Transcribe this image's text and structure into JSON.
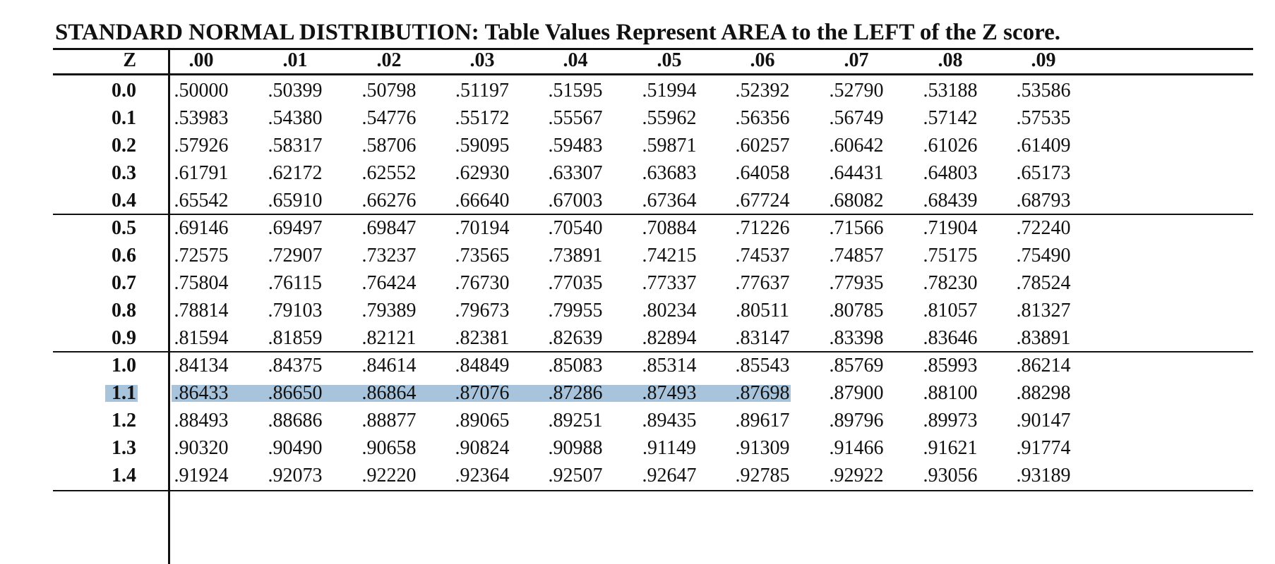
{
  "title": "STANDARD NORMAL DISTRIBUTION: Table Values Represent AREA to the LEFT of the Z score.",
  "table": {
    "z_header": "Z",
    "columns": [
      ".00",
      ".01",
      ".02",
      ".03",
      ".04",
      ".05",
      ".06",
      ".07",
      ".08",
      ".09"
    ],
    "rows": [
      {
        "z": "0.0",
        "values": [
          ".50000",
          ".50399",
          ".50798",
          ".51197",
          ".51595",
          ".51994",
          ".52392",
          ".52790",
          ".53188",
          ".53586"
        ]
      },
      {
        "z": "0.1",
        "values": [
          ".53983",
          ".54380",
          ".54776",
          ".55172",
          ".55567",
          ".55962",
          ".56356",
          ".56749",
          ".57142",
          ".57535"
        ]
      },
      {
        "z": "0.2",
        "values": [
          ".57926",
          ".58317",
          ".58706",
          ".59095",
          ".59483",
          ".59871",
          ".60257",
          ".60642",
          ".61026",
          ".61409"
        ]
      },
      {
        "z": "0.3",
        "values": [
          ".61791",
          ".62172",
          ".62552",
          ".62930",
          ".63307",
          ".63683",
          ".64058",
          ".64431",
          ".64803",
          ".65173"
        ]
      },
      {
        "z": "0.4",
        "values": [
          ".65542",
          ".65910",
          ".66276",
          ".66640",
          ".67003",
          ".67364",
          ".67724",
          ".68082",
          ".68439",
          ".68793"
        ]
      },
      {
        "z": "0.5",
        "values": [
          ".69146",
          ".69497",
          ".69847",
          ".70194",
          ".70540",
          ".70884",
          ".71226",
          ".71566",
          ".71904",
          ".72240"
        ]
      },
      {
        "z": "0.6",
        "values": [
          ".72575",
          ".72907",
          ".73237",
          ".73565",
          ".73891",
          ".74215",
          ".74537",
          ".74857",
          ".75175",
          ".75490"
        ]
      },
      {
        "z": "0.7",
        "values": [
          ".75804",
          ".76115",
          ".76424",
          ".76730",
          ".77035",
          ".77337",
          ".77637",
          ".77935",
          ".78230",
          ".78524"
        ]
      },
      {
        "z": "0.8",
        "values": [
          ".78814",
          ".79103",
          ".79389",
          ".79673",
          ".79955",
          ".80234",
          ".80511",
          ".80785",
          ".81057",
          ".81327"
        ]
      },
      {
        "z": "0.9",
        "values": [
          ".81594",
          ".81859",
          ".82121",
          ".82381",
          ".82639",
          ".82894",
          ".83147",
          ".83398",
          ".83646",
          ".83891"
        ]
      },
      {
        "z": "1.0",
        "values": [
          ".84134",
          ".84375",
          ".84614",
          ".84849",
          ".85083",
          ".85314",
          ".85543",
          ".85769",
          ".85993",
          ".86214"
        ]
      },
      {
        "z": "1.1",
        "values": [
          ".86433",
          ".86650",
          ".86864",
          ".87076",
          ".87286",
          ".87493",
          ".87698",
          ".87900",
          ".88100",
          ".88298"
        ],
        "highlight_through_column": ".06"
      },
      {
        "z": "1.2",
        "values": [
          ".88493",
          ".88686",
          ".88877",
          ".89065",
          ".89251",
          ".89435",
          ".89617",
          ".89796",
          ".89973",
          ".90147"
        ]
      },
      {
        "z": "1.3",
        "values": [
          ".90320",
          ".90490",
          ".90658",
          ".90824",
          ".90988",
          ".91149",
          ".91309",
          ".91466",
          ".91621",
          ".91774"
        ]
      },
      {
        "z": "1.4",
        "values": [
          ".91924",
          ".92073",
          ".92220",
          ".92364",
          ".92507",
          ".92647",
          ".92785",
          ".92922",
          ".93056",
          ".93189"
        ]
      }
    ]
  },
  "colors": {
    "highlight": "#a8c4dc",
    "text": "#111111",
    "background": "#ffffff"
  }
}
